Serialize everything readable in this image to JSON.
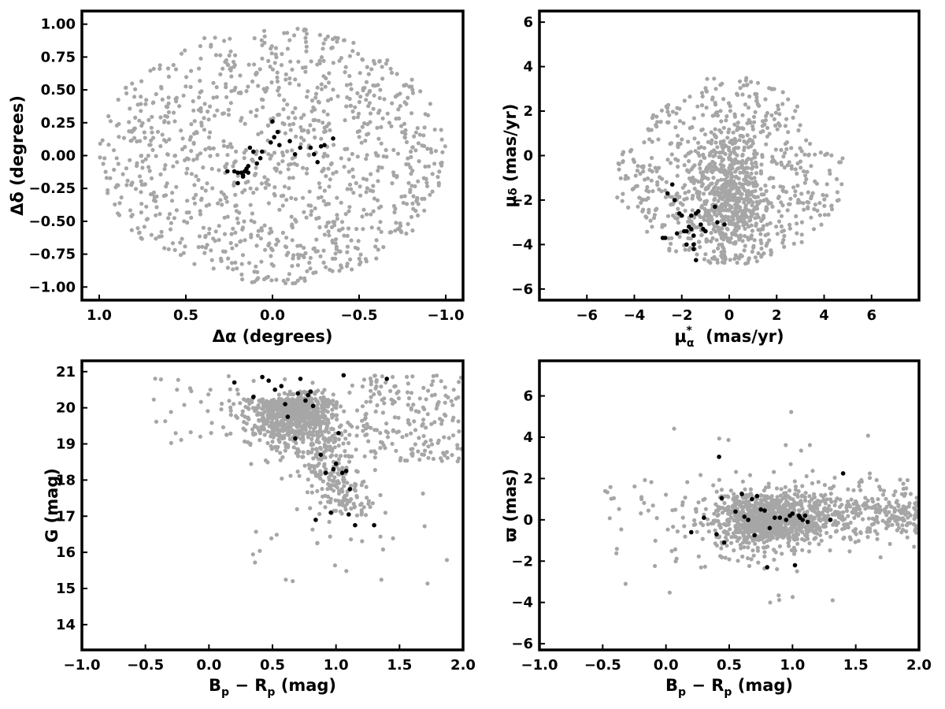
{
  "colors": {
    "field": "#a6a6a6",
    "members": "#000000",
    "frame": "#000000"
  },
  "chart_data": [
    {
      "type": "scatter",
      "title": "",
      "xlabel": "Δα (degrees)",
      "ylabel": "Δδ (degrees)",
      "xlim": [
        1.1,
        -1.1
      ],
      "ylim": [
        -1.1,
        1.1
      ],
      "xticks": [
        1.0,
        0.5,
        0.0,
        -0.5,
        -1.0
      ],
      "xtick_labels": [
        "1.0",
        "0.5",
        "0.0",
        "−0.5",
        "−1.0"
      ],
      "yticks": [
        -1.0,
        -0.75,
        -0.5,
        -0.25,
        0.0,
        0.25,
        0.5,
        0.75,
        1.0
      ],
      "ytick_labels": [
        "−1.00",
        "−0.75",
        "−0.50",
        "−0.25",
        "0.00",
        "0.25",
        "0.50",
        "0.75",
        "1.00"
      ],
      "field_cloud": {
        "shape": "disc",
        "center": [
          0.0,
          0.0
        ],
        "radius": [
          1.0,
          0.98
        ],
        "count": 1100,
        "seed": 11
      },
      "series": [
        {
          "x": [
            0.0,
            -0.03,
            -0.01,
            0.01,
            -0.04,
            0.06,
            0.07,
            0.09,
            0.11,
            0.13,
            0.14,
            0.15,
            0.16,
            0.17,
            0.18,
            0.2,
            0.22,
            0.26,
            0.17,
            -0.22,
            -0.24,
            -0.26,
            -0.35,
            -0.3,
            -0.28,
            -0.1,
            -0.16,
            0.2,
            -0.13,
            0.14
          ],
          "y": [
            0.26,
            0.18,
            0.14,
            0.1,
            0.08,
            0.03,
            -0.02,
            -0.06,
            0.03,
            0.06,
            -0.08,
            -0.1,
            -0.12,
            -0.15,
            -0.13,
            -0.13,
            -0.12,
            -0.12,
            -0.16,
            0.06,
            0.01,
            -0.05,
            0.13,
            0.08,
            0.07,
            0.11,
            0.06,
            -0.21,
            0.01,
            -0.13
          ]
        }
      ]
    },
    {
      "type": "scatter",
      "title": "",
      "xlabel": "μ",
      "xlabel_sub": "α",
      "xlabel_sup": "*",
      "xlabel_unit": "(mas/yr)",
      "ylabel": "μ",
      "ylabel_sub": "δ",
      "ylabel_unit": "(mas/yr)",
      "xlim": [
        -8,
        8
      ],
      "ylim": [
        -6.5,
        6.5
      ],
      "xticks": [
        -6,
        -4,
        -2,
        0,
        2,
        4,
        6
      ],
      "xtick_labels": [
        "−6",
        "−4",
        "−2",
        "0",
        "2",
        "4",
        "6"
      ],
      "yticks": [
        -6,
        -4,
        -2,
        0,
        2,
        4,
        6
      ],
      "ytick_labels": [
        "−6",
        "−4",
        "−2",
        "0",
        "2",
        "4",
        "6"
      ],
      "field_cloud": {
        "shape": "half-disc",
        "center": [
          0.0,
          -1.0
        ],
        "radius": [
          4.8,
          4.0
        ],
        "count": 1150,
        "seed": 23
      },
      "series": [
        {
          "x": [
            -2.6,
            -2.8,
            -2.4,
            -2.1,
            -2.0,
            -1.9,
            -1.8,
            -1.7,
            -1.6,
            -1.5,
            -1.4,
            -1.2,
            -1.1,
            -1.0,
            -1.6,
            -1.8,
            -1.4,
            -2.2,
            -1.5,
            -0.6,
            -0.5,
            -0.2,
            -2.7,
            -2.3,
            -1.5,
            -1.3
          ],
          "y": [
            -1.7,
            -3.7,
            -1.3,
            -2.6,
            -2.7,
            -3.4,
            -3.4,
            -3.2,
            -3.3,
            -3.6,
            -2.6,
            -3.1,
            -3.3,
            -3.4,
            -2.7,
            -4.0,
            -4.7,
            -3.5,
            -4.2,
            -2.3,
            -3.0,
            -3.1,
            -3.7,
            -2.0,
            -4.0,
            -2.5
          ]
        }
      ]
    },
    {
      "type": "scatter",
      "title": "",
      "xlabel": "B",
      "xlabel_sub": "p",
      "xlabel_mid": " − R",
      "xlabel_sub2": "p",
      "xlabel_unit": " (mag)",
      "ylabel": "G (mag)",
      "xlim": [
        -1.0,
        2.0
      ],
      "ylim": [
        13.3,
        21.3
      ],
      "xticks": [
        -1.0,
        -0.5,
        0.0,
        0.5,
        1.0,
        1.5,
        2.0
      ],
      "xtick_labels": [
        "−1.0",
        "−0.5",
        "0.0",
        "0.5",
        "1.0",
        "1.5",
        "2.0"
      ],
      "yticks": [
        14,
        15,
        16,
        17,
        18,
        19,
        20,
        21
      ],
      "ytick_labels": [
        "14",
        "15",
        "16",
        "17",
        "18",
        "19",
        "20",
        "21"
      ],
      "field_cloud": {
        "shape": "cmd",
        "count": 1300,
        "seed": 37
      },
      "series": [
        {
          "x": [
            0.2,
            0.42,
            0.47,
            0.52,
            0.6,
            0.62,
            0.68,
            0.7,
            0.72,
            0.76,
            0.8,
            0.82,
            0.88,
            0.96,
            0.98,
            1.0,
            1.02,
            1.06,
            1.1,
            1.11,
            1.15,
            1.3,
            0.84,
            0.92,
            1.05,
            1.4,
            0.35,
            0.57,
            1.08,
            0.78
          ],
          "y": [
            20.7,
            20.85,
            20.75,
            20.5,
            20.1,
            19.75,
            19.15,
            20.4,
            20.8,
            20.2,
            20.45,
            20.05,
            18.7,
            17.1,
            18.3,
            18.45,
            19.3,
            20.9,
            17.05,
            17.75,
            16.75,
            16.75,
            16.9,
            18.2,
            18.2,
            20.8,
            20.3,
            20.6,
            18.25,
            20.35
          ]
        }
      ]
    },
    {
      "type": "scatter",
      "title": "",
      "xlabel": "B",
      "xlabel_sub": "p",
      "xlabel_mid": " − R",
      "xlabel_sub2": "p",
      "xlabel_unit": " (mag)",
      "ylabel": "ϖ (mas)",
      "xlim": [
        -1.0,
        2.0
      ],
      "ylim": [
        -6.3,
        7.7
      ],
      "xticks": [
        -1.0,
        -0.5,
        0.0,
        0.5,
        1.0,
        1.5,
        2.0
      ],
      "xtick_labels": [
        "−1.0",
        "−0.5",
        "0.0",
        "0.5",
        "1.0",
        "1.5",
        "2.0"
      ],
      "yticks": [
        -6,
        -4,
        -2,
        0,
        2,
        4,
        6
      ],
      "ytick_labels": [
        "−6",
        "−4",
        "−2",
        "0",
        "2",
        "4",
        "6"
      ],
      "field_cloud": {
        "shape": "parallax",
        "count": 1300,
        "seed": 53
      },
      "series": [
        {
          "x": [
            0.2,
            0.3,
            0.42,
            0.44,
            0.46,
            0.55,
            0.6,
            0.62,
            0.68,
            0.7,
            0.72,
            0.75,
            0.8,
            0.82,
            0.86,
            0.9,
            0.95,
            0.98,
            1.0,
            1.02,
            1.05,
            1.08,
            1.1,
            1.12,
            1.3,
            1.4,
            0.65,
            0.4,
            0.78,
            1.06
          ],
          "y": [
            -0.6,
            0.1,
            3.05,
            1.05,
            -1.1,
            0.4,
            1.25,
            0.15,
            1.0,
            -0.75,
            1.15,
            0.5,
            -2.3,
            -0.4,
            0.1,
            0.1,
            0.0,
            0.2,
            0.3,
            -2.2,
            0.2,
            0.0,
            0.2,
            -0.1,
            0.0,
            2.25,
            0.0,
            -0.7,
            0.45,
            0.1
          ]
        }
      ]
    }
  ]
}
